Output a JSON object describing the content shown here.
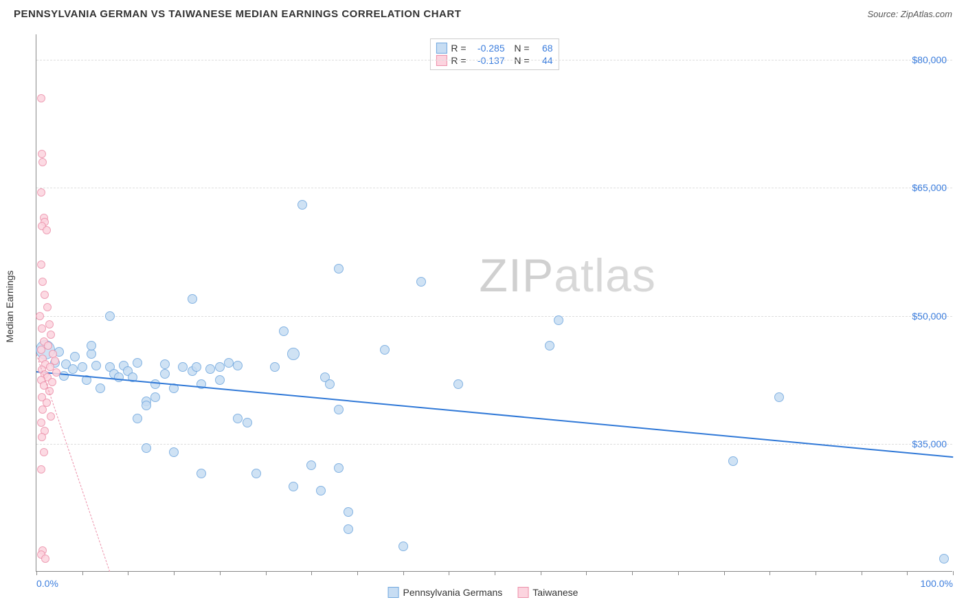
{
  "header": {
    "title": "PENNSYLVANIA GERMAN VS TAIWANESE MEDIAN EARNINGS CORRELATION CHART",
    "source_prefix": "Source: ",
    "source_name": "ZipAtlas.com"
  },
  "watermark": {
    "part1": "ZIP",
    "part2": "atlas"
  },
  "chart": {
    "type": "scatter",
    "background_color": "#ffffff",
    "grid_color": "#dddddd",
    "axis_color": "#888888",
    "xlim": [
      0,
      100
    ],
    "ylim": [
      20000,
      83000
    ],
    "xticks_minor": [
      0,
      5,
      10,
      15,
      20,
      25,
      30,
      35,
      40,
      45,
      50,
      55,
      60,
      65,
      70,
      75,
      80,
      85,
      90,
      95,
      100
    ],
    "xticks_labeled": [
      {
        "v": 0,
        "label": "0.0%"
      },
      {
        "v": 100,
        "label": "100.0%"
      }
    ],
    "yticks": [
      {
        "v": 35000,
        "label": "$35,000"
      },
      {
        "v": 50000,
        "label": "$50,000"
      },
      {
        "v": 65000,
        "label": "$65,000"
      },
      {
        "v": 80000,
        "label": "$80,000"
      }
    ],
    "yaxis_title": "Median Earnings",
    "label_fontsize": 14,
    "tick_color": "#3b7ddd",
    "series": [
      {
        "id": "pg",
        "name": "Pennsylvania Germans",
        "fill": "#c7ddf3",
        "stroke": "#6ea6de",
        "opacity": 0.85,
        "point_radius": 7,
        "trend": {
          "x1": 0,
          "y1": 43500,
          "x2": 100,
          "y2": 33500,
          "color": "#2f78d7",
          "width": 2,
          "dash": "solid"
        },
        "stats": {
          "R": "-0.285",
          "N": "68"
        },
        "points": [
          {
            "x": 1,
            "y": 46000,
            "r": 14
          },
          {
            "x": 2,
            "y": 44500
          },
          {
            "x": 2.5,
            "y": 45800
          },
          {
            "x": 3,
            "y": 43000
          },
          {
            "x": 3.2,
            "y": 44300
          },
          {
            "x": 4,
            "y": 43800
          },
          {
            "x": 4.2,
            "y": 45200
          },
          {
            "x": 5,
            "y": 44000
          },
          {
            "x": 5.5,
            "y": 42500
          },
          {
            "x": 6,
            "y": 45500
          },
          {
            "x": 6.5,
            "y": 44200
          },
          {
            "x": 6,
            "y": 46500
          },
          {
            "x": 8,
            "y": 50000
          },
          {
            "x": 8,
            "y": 44000
          },
          {
            "x": 8.5,
            "y": 43200
          },
          {
            "x": 7,
            "y": 41500
          },
          {
            "x": 9,
            "y": 42800
          },
          {
            "x": 9.5,
            "y": 44200
          },
          {
            "x": 10,
            "y": 43500
          },
          {
            "x": 10.5,
            "y": 42800
          },
          {
            "x": 11,
            "y": 44500
          },
          {
            "x": 11,
            "y": 38000
          },
          {
            "x": 12,
            "y": 40000
          },
          {
            "x": 12,
            "y": 34500
          },
          {
            "x": 12,
            "y": 39500
          },
          {
            "x": 13,
            "y": 42000
          },
          {
            "x": 13,
            "y": 40500
          },
          {
            "x": 14,
            "y": 43200
          },
          {
            "x": 14,
            "y": 44300
          },
          {
            "x": 15,
            "y": 41500
          },
          {
            "x": 15,
            "y": 34000
          },
          {
            "x": 16,
            "y": 44000
          },
          {
            "x": 17,
            "y": 43500
          },
          {
            "x": 17,
            "y": 52000
          },
          {
            "x": 17.5,
            "y": 44000
          },
          {
            "x": 18,
            "y": 42000
          },
          {
            "x": 18,
            "y": 31500
          },
          {
            "x": 19,
            "y": 43800
          },
          {
            "x": 20,
            "y": 42500
          },
          {
            "x": 20,
            "y": 44000
          },
          {
            "x": 21,
            "y": 44500
          },
          {
            "x": 22,
            "y": 38000
          },
          {
            "x": 22,
            "y": 44200
          },
          {
            "x": 23,
            "y": 37500
          },
          {
            "x": 24,
            "y": 31500
          },
          {
            "x": 26,
            "y": 44000
          },
          {
            "x": 27,
            "y": 48200
          },
          {
            "x": 28,
            "y": 45500,
            "r": 9
          },
          {
            "x": 28,
            "y": 30000
          },
          {
            "x": 29,
            "y": 63000
          },
          {
            "x": 30,
            "y": 32500
          },
          {
            "x": 31,
            "y": 29500
          },
          {
            "x": 31.5,
            "y": 42800
          },
          {
            "x": 32,
            "y": 42000
          },
          {
            "x": 33,
            "y": 39000
          },
          {
            "x": 33,
            "y": 55500
          },
          {
            "x": 33,
            "y": 32200
          },
          {
            "x": 34,
            "y": 25000
          },
          {
            "x": 34,
            "y": 27000
          },
          {
            "x": 38,
            "y": 46000
          },
          {
            "x": 40,
            "y": 23000
          },
          {
            "x": 42,
            "y": 54000
          },
          {
            "x": 46,
            "y": 42000
          },
          {
            "x": 56,
            "y": 46500
          },
          {
            "x": 57,
            "y": 49500
          },
          {
            "x": 76,
            "y": 33000
          },
          {
            "x": 81,
            "y": 40500
          },
          {
            "x": 99,
            "y": 21500
          }
        ]
      },
      {
        "id": "tw",
        "name": "Taiwanese",
        "fill": "#fcd4df",
        "stroke": "#ec8fa9",
        "opacity": 0.85,
        "point_radius": 6,
        "trend": {
          "x1": 0,
          "y1": 45500,
          "x2": 8,
          "y2": 20000,
          "color": "#ec8fa9",
          "width": 1,
          "dash": "dashed"
        },
        "stats": {
          "R": "-0.137",
          "N": "44"
        },
        "points": [
          {
            "x": 0.5,
            "y": 75500
          },
          {
            "x": 0.6,
            "y": 69000
          },
          {
            "x": 0.7,
            "y": 68000
          },
          {
            "x": 0.5,
            "y": 64500
          },
          {
            "x": 0.8,
            "y": 61500
          },
          {
            "x": 0.9,
            "y": 61000
          },
          {
            "x": 0.6,
            "y": 60500
          },
          {
            "x": 1.1,
            "y": 60000
          },
          {
            "x": 0.5,
            "y": 56000
          },
          {
            "x": 0.7,
            "y": 54000
          },
          {
            "x": 0.9,
            "y": 52500
          },
          {
            "x": 1.2,
            "y": 51000
          },
          {
            "x": 0.4,
            "y": 50000
          },
          {
            "x": 1.4,
            "y": 49000
          },
          {
            "x": 0.6,
            "y": 48500
          },
          {
            "x": 1.6,
            "y": 47800
          },
          {
            "x": 0.8,
            "y": 47000
          },
          {
            "x": 1.3,
            "y": 46500
          },
          {
            "x": 0.5,
            "y": 46000
          },
          {
            "x": 1.8,
            "y": 45500
          },
          {
            "x": 0.7,
            "y": 45000
          },
          {
            "x": 2,
            "y": 44700
          },
          {
            "x": 1,
            "y": 44300
          },
          {
            "x": 1.5,
            "y": 44000
          },
          {
            "x": 0.6,
            "y": 43700
          },
          {
            "x": 2.2,
            "y": 43400
          },
          {
            "x": 0.9,
            "y": 43100
          },
          {
            "x": 1.2,
            "y": 42800
          },
          {
            "x": 0.5,
            "y": 42500
          },
          {
            "x": 1.7,
            "y": 42200
          },
          {
            "x": 0.8,
            "y": 41800
          },
          {
            "x": 1.4,
            "y": 41200
          },
          {
            "x": 0.6,
            "y": 40500
          },
          {
            "x": 1.1,
            "y": 39800
          },
          {
            "x": 0.7,
            "y": 39000
          },
          {
            "x": 1.6,
            "y": 38200
          },
          {
            "x": 0.5,
            "y": 37500
          },
          {
            "x": 0.9,
            "y": 36500
          },
          {
            "x": 0.6,
            "y": 35800
          },
          {
            "x": 0.8,
            "y": 34000
          },
          {
            "x": 0.5,
            "y": 32000
          },
          {
            "x": 0.7,
            "y": 22500
          },
          {
            "x": 0.5,
            "y": 22000
          },
          {
            "x": 1,
            "y": 21500
          }
        ]
      }
    ]
  },
  "bottom_legend": [
    {
      "label": "Pennsylvania Germans",
      "fill": "#c7ddf3",
      "stroke": "#6ea6de"
    },
    {
      "label": "Taiwanese",
      "fill": "#fcd4df",
      "stroke": "#ec8fa9"
    }
  ]
}
